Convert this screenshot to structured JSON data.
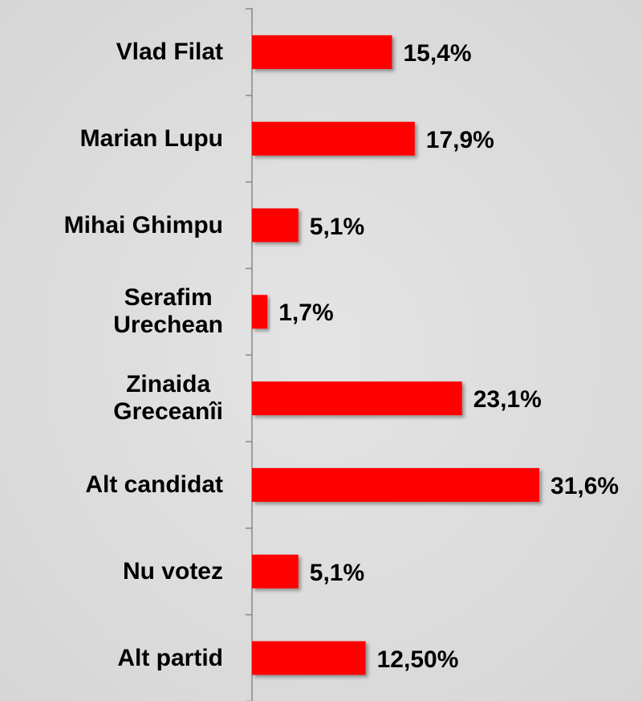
{
  "chart_data": {
    "type": "bar",
    "orientation": "horizontal",
    "categories": [
      "Vlad Filat",
      "Marian Lupu",
      "Mihai Ghimpu",
      "Serafim\nUrechean",
      "Zinaida\nGreceanîi",
      "Alt candidat",
      "Nu votez",
      "Alt partid"
    ],
    "values": [
      15.4,
      17.9,
      5.1,
      1.7,
      23.1,
      31.6,
      5.1,
      12.5
    ],
    "value_labels": [
      "15,4%",
      "17,9%",
      "5,1%",
      "1,7%",
      "23,1%",
      "31,6%",
      "5,1%",
      "12,50%"
    ],
    "color": "#ff0000"
  }
}
